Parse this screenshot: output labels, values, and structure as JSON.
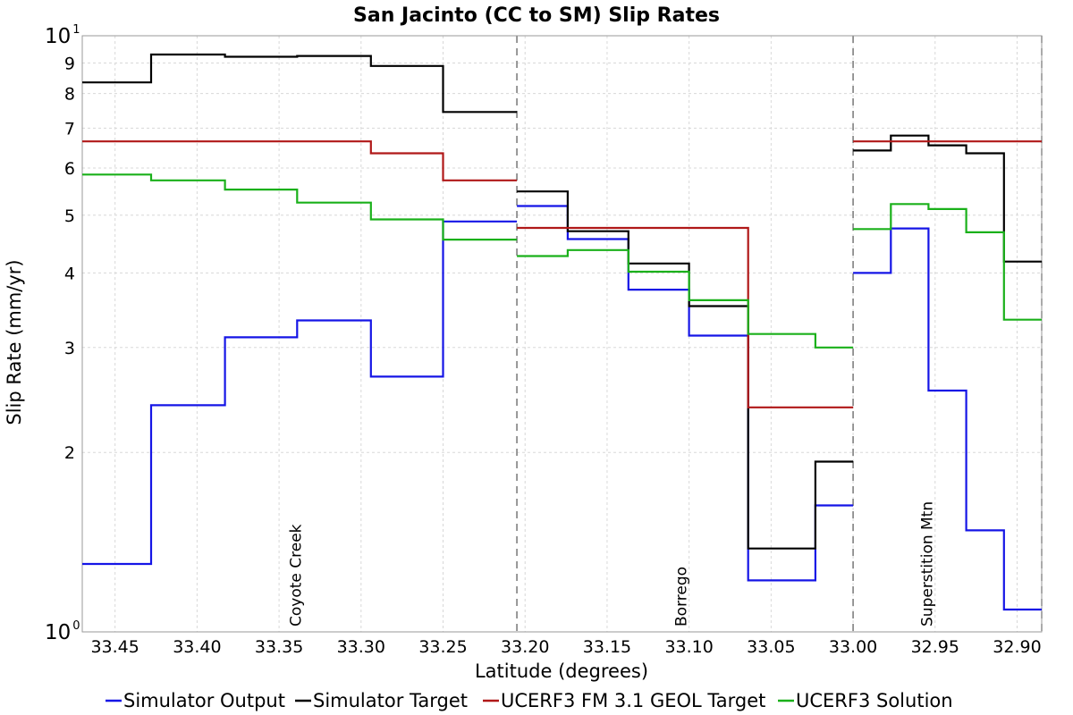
{
  "chart_data": {
    "type": "line",
    "step": true,
    "title": "San Jacinto (CC to SM) Slip Rates",
    "xlabel": "Latitude (degrees)",
    "ylabel": "Slip Rate (mm/yr)",
    "x_reversed": true,
    "xlim": [
      33.47,
      32.885
    ],
    "ylim": [
      1,
      10
    ],
    "y_scale": "log",
    "grid": true,
    "legend_position": "bottom",
    "x_ticks": [
      "33.45",
      "33.40",
      "33.35",
      "33.30",
      "33.25",
      "33.20",
      "33.15",
      "33.10",
      "33.05",
      "33.00",
      "32.95",
      "32.90"
    ],
    "x_tick_values": [
      33.45,
      33.4,
      33.35,
      33.3,
      33.25,
      33.2,
      33.15,
      33.1,
      33.05,
      33.0,
      32.95,
      32.9
    ],
    "y_ticks": [
      {
        "value": 1,
        "base": "10",
        "exp": "0"
      },
      {
        "value": 2,
        "label": "2"
      },
      {
        "value": 3,
        "label": "3"
      },
      {
        "value": 4,
        "label": "4"
      },
      {
        "value": 5,
        "label": "5"
      },
      {
        "value": 6,
        "label": "6"
      },
      {
        "value": 7,
        "label": "7"
      },
      {
        "value": 8,
        "label": "8"
      },
      {
        "value": 9,
        "label": "9"
      },
      {
        "value": 10,
        "base": "10",
        "exp": "1"
      }
    ],
    "separators": [
      33.205,
      33.0,
      32.885
    ],
    "annotations": [
      {
        "text": "Coyote Creek",
        "x": 33.34
      },
      {
        "text": "Borrego",
        "x": 33.105
      },
      {
        "text": "Superstition Mtn",
        "x": 32.955
      }
    ],
    "series": [
      {
        "name": "Simulator Output",
        "color": "#1515e6",
        "segments": [
          [
            [
              33.47,
              1.3
            ],
            [
              33.428,
              1.3
            ],
            [
              33.428,
              2.4
            ],
            [
              33.383,
              2.4
            ],
            [
              33.383,
              3.12
            ],
            [
              33.339,
              3.12
            ],
            [
              33.339,
              3.33
            ],
            [
              33.294,
              3.33
            ],
            [
              33.294,
              2.68
            ],
            [
              33.25,
              2.68
            ],
            [
              33.25,
              4.88
            ],
            [
              33.205,
              4.88
            ]
          ],
          [
            [
              33.205,
              5.18
            ],
            [
              33.174,
              5.18
            ],
            [
              33.174,
              4.56
            ],
            [
              33.137,
              4.56
            ],
            [
              33.137,
              3.75
            ],
            [
              33.1,
              3.75
            ],
            [
              33.1,
              3.14
            ],
            [
              33.064,
              3.14
            ],
            [
              33.064,
              1.22
            ],
            [
              33.023,
              1.22
            ],
            [
              33.023,
              1.63
            ],
            [
              33.0,
              1.63
            ]
          ],
          [
            [
              33.0,
              4.0
            ],
            [
              32.977,
              4.0
            ],
            [
              32.977,
              4.75
            ],
            [
              32.954,
              4.75
            ],
            [
              32.954,
              2.54
            ],
            [
              32.931,
              2.54
            ],
            [
              32.931,
              1.48
            ],
            [
              32.908,
              1.48
            ],
            [
              32.908,
              1.09
            ],
            [
              32.885,
              1.09
            ]
          ]
        ]
      },
      {
        "name": "Simulator Target",
        "color": "#000000",
        "segments": [
          [
            [
              33.47,
              8.35
            ],
            [
              33.428,
              8.35
            ],
            [
              33.428,
              9.3
            ],
            [
              33.383,
              9.3
            ],
            [
              33.383,
              9.22
            ],
            [
              33.339,
              9.22
            ],
            [
              33.339,
              9.25
            ],
            [
              33.294,
              9.25
            ],
            [
              33.294,
              8.9
            ],
            [
              33.25,
              8.9
            ],
            [
              33.25,
              7.45
            ],
            [
              33.205,
              7.45
            ]
          ],
          [
            [
              33.205,
              5.48
            ],
            [
              33.174,
              5.48
            ],
            [
              33.174,
              4.7
            ],
            [
              33.137,
              4.7
            ],
            [
              33.137,
              4.15
            ],
            [
              33.1,
              4.15
            ],
            [
              33.1,
              3.52
            ],
            [
              33.064,
              3.52
            ],
            [
              33.064,
              1.38
            ],
            [
              33.023,
              1.38
            ],
            [
              33.023,
              1.93
            ],
            [
              33.0,
              1.93
            ]
          ],
          [
            [
              33.0,
              6.42
            ],
            [
              32.977,
              6.42
            ],
            [
              32.977,
              6.8
            ],
            [
              32.954,
              6.8
            ],
            [
              32.954,
              6.55
            ],
            [
              32.931,
              6.55
            ],
            [
              32.931,
              6.35
            ],
            [
              32.908,
              6.35
            ],
            [
              32.908,
              4.18
            ],
            [
              32.885,
              4.18
            ]
          ]
        ]
      },
      {
        "name": "UCERF3 FM 3.1 GEOL Target",
        "color": "#b01818",
        "segments": [
          [
            [
              33.47,
              6.65
            ],
            [
              33.294,
              6.65
            ],
            [
              33.294,
              6.35
            ],
            [
              33.25,
              6.35
            ],
            [
              33.25,
              5.72
            ],
            [
              33.205,
              5.72
            ]
          ],
          [
            [
              33.205,
              4.76
            ],
            [
              33.064,
              4.76
            ],
            [
              33.064,
              2.38
            ],
            [
              33.0,
              2.38
            ]
          ],
          [
            [
              33.0,
              6.65
            ],
            [
              32.885,
              6.65
            ]
          ]
        ]
      },
      {
        "name": "UCERF3 Solution",
        "color": "#1ab01a",
        "segments": [
          [
            [
              33.47,
              5.85
            ],
            [
              33.428,
              5.85
            ],
            [
              33.428,
              5.72
            ],
            [
              33.383,
              5.72
            ],
            [
              33.383,
              5.52
            ],
            [
              33.339,
              5.52
            ],
            [
              33.339,
              5.25
            ],
            [
              33.294,
              5.25
            ],
            [
              33.294,
              4.92
            ],
            [
              33.25,
              4.92
            ],
            [
              33.25,
              4.55
            ],
            [
              33.205,
              4.55
            ]
          ],
          [
            [
              33.205,
              4.27
            ],
            [
              33.174,
              4.27
            ],
            [
              33.174,
              4.37
            ],
            [
              33.137,
              4.37
            ],
            [
              33.137,
              4.02
            ],
            [
              33.1,
              4.02
            ],
            [
              33.1,
              3.6
            ],
            [
              33.064,
              3.6
            ],
            [
              33.064,
              3.16
            ],
            [
              33.023,
              3.16
            ],
            [
              33.023,
              3.0
            ],
            [
              33.0,
              3.0
            ]
          ],
          [
            [
              33.0,
              4.74
            ],
            [
              32.977,
              4.74
            ],
            [
              32.977,
              5.22
            ],
            [
              32.954,
              5.22
            ],
            [
              32.954,
              5.12
            ],
            [
              32.931,
              5.12
            ],
            [
              32.931,
              4.68
            ],
            [
              32.908,
              4.68
            ],
            [
              32.908,
              3.34
            ],
            [
              32.885,
              3.34
            ]
          ]
        ]
      }
    ]
  }
}
